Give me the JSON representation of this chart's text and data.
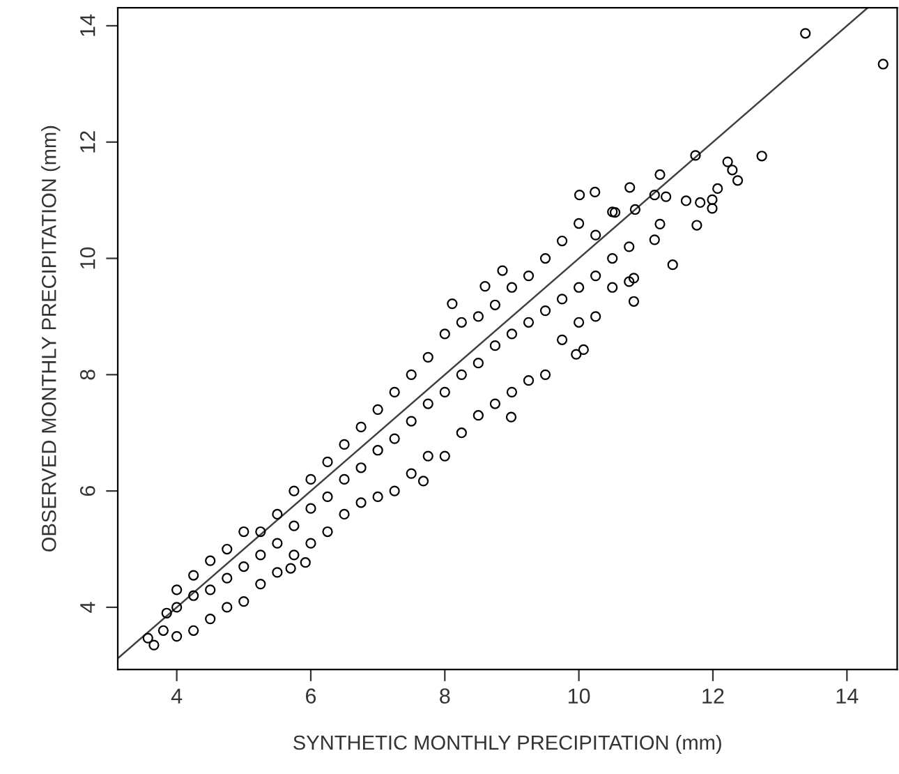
{
  "chart_data": {
    "type": "scatter",
    "xlabel": "SYNTHETIC MONTHLY PRECIPITATION (mm)",
    "ylabel": "OBSERVED MONTHLY PRECIPITATION (mm)",
    "xlim": [
      3.12,
      14.75
    ],
    "ylim": [
      2.93,
      14.31
    ],
    "xticks": [
      4,
      6,
      8,
      10,
      12,
      14
    ],
    "yticks": [
      4,
      6,
      8,
      10,
      12,
      14
    ],
    "grid": false,
    "marker": "circle",
    "series": [
      {
        "color": "#000000",
        "x": [
          3.57,
          3.66,
          3.8,
          3.85,
          4.0,
          4.0,
          4.0,
          4.25,
          4.25,
          4.25,
          4.5,
          4.5,
          4.5,
          4.75,
          4.75,
          4.75,
          5.0,
          5.0,
          5.0,
          5.25,
          5.25,
          5.25,
          5.5,
          5.5,
          5.5,
          5.7,
          5.92,
          5.75,
          5.75,
          5.75,
          6.0,
          6.0,
          6.0,
          6.25,
          6.25,
          6.25,
          6.5,
          6.5,
          6.5,
          6.75,
          6.75,
          6.75,
          7.0,
          7.0,
          7.0,
          7.25,
          7.25,
          7.25,
          7.5,
          7.5,
          7.5,
          7.68,
          7.75,
          7.75,
          7.75,
          8.0,
          8.0,
          8.0,
          8.11,
          8.25,
          8.25,
          8.25,
          8.5,
          8.5,
          8.5,
          8.6,
          8.75,
          8.75,
          8.75,
          8.86,
          8.99,
          9.0,
          9.0,
          9.0,
          9.25,
          9.25,
          9.25,
          9.5,
          9.5,
          9.5,
          9.75,
          9.75,
          9.75,
          9.96,
          10.07,
          10.0,
          10.0,
          10.0,
          10.01,
          10.24,
          10.25,
          10.25,
          10.25,
          10.5,
          10.5,
          10.5,
          10.54,
          10.75,
          10.75,
          10.76,
          10.82,
          10.82,
          10.84,
          11.13,
          11.13,
          11.21,
          11.21,
          11.3,
          11.4,
          11.6,
          11.74,
          11.76,
          11.81,
          11.99,
          11.99,
          12.07,
          12.22,
          12.29,
          12.37,
          12.73,
          13.38,
          14.54
        ],
        "values": [
          3.47,
          3.35,
          3.6,
          3.9,
          3.5,
          4.0,
          4.3,
          3.6,
          4.2,
          4.55,
          3.8,
          4.3,
          4.8,
          4.0,
          4.5,
          5.0,
          4.1,
          4.7,
          5.3,
          4.4,
          4.9,
          5.3,
          4.6,
          5.1,
          5.6,
          4.67,
          4.77,
          4.9,
          5.4,
          6.0,
          5.1,
          5.7,
          6.2,
          5.3,
          5.9,
          6.5,
          5.6,
          6.2,
          6.8,
          5.8,
          6.4,
          7.1,
          5.9,
          6.7,
          7.4,
          6.0,
          6.9,
          7.7,
          6.3,
          7.2,
          8.0,
          6.17,
          6.6,
          7.5,
          8.3,
          6.6,
          7.7,
          8.7,
          9.22,
          7.0,
          8.0,
          8.9,
          7.3,
          8.2,
          9.0,
          9.52,
          7.5,
          8.5,
          9.2,
          9.79,
          7.27,
          7.7,
          8.7,
          9.5,
          7.9,
          8.9,
          9.7,
          8.0,
          9.1,
          10.0,
          8.6,
          9.3,
          10.3,
          8.35,
          8.43,
          8.9,
          9.5,
          10.6,
          11.09,
          11.14,
          9.0,
          9.7,
          10.4,
          9.5,
          10.0,
          10.8,
          10.79,
          9.6,
          10.2,
          11.22,
          9.66,
          9.26,
          10.84,
          10.32,
          11.09,
          11.44,
          10.59,
          11.06,
          9.89,
          10.99,
          11.77,
          10.57,
          10.96,
          11.01,
          10.86,
          11.2,
          11.66,
          11.52,
          11.34,
          11.76,
          13.87,
          13.34
        ]
      },
      {
        "type": "line",
        "color": "#404040",
        "x": [
          3.12,
          14.31
        ],
        "values": [
          3.12,
          14.31
        ],
        "marker": "none"
      }
    ]
  }
}
